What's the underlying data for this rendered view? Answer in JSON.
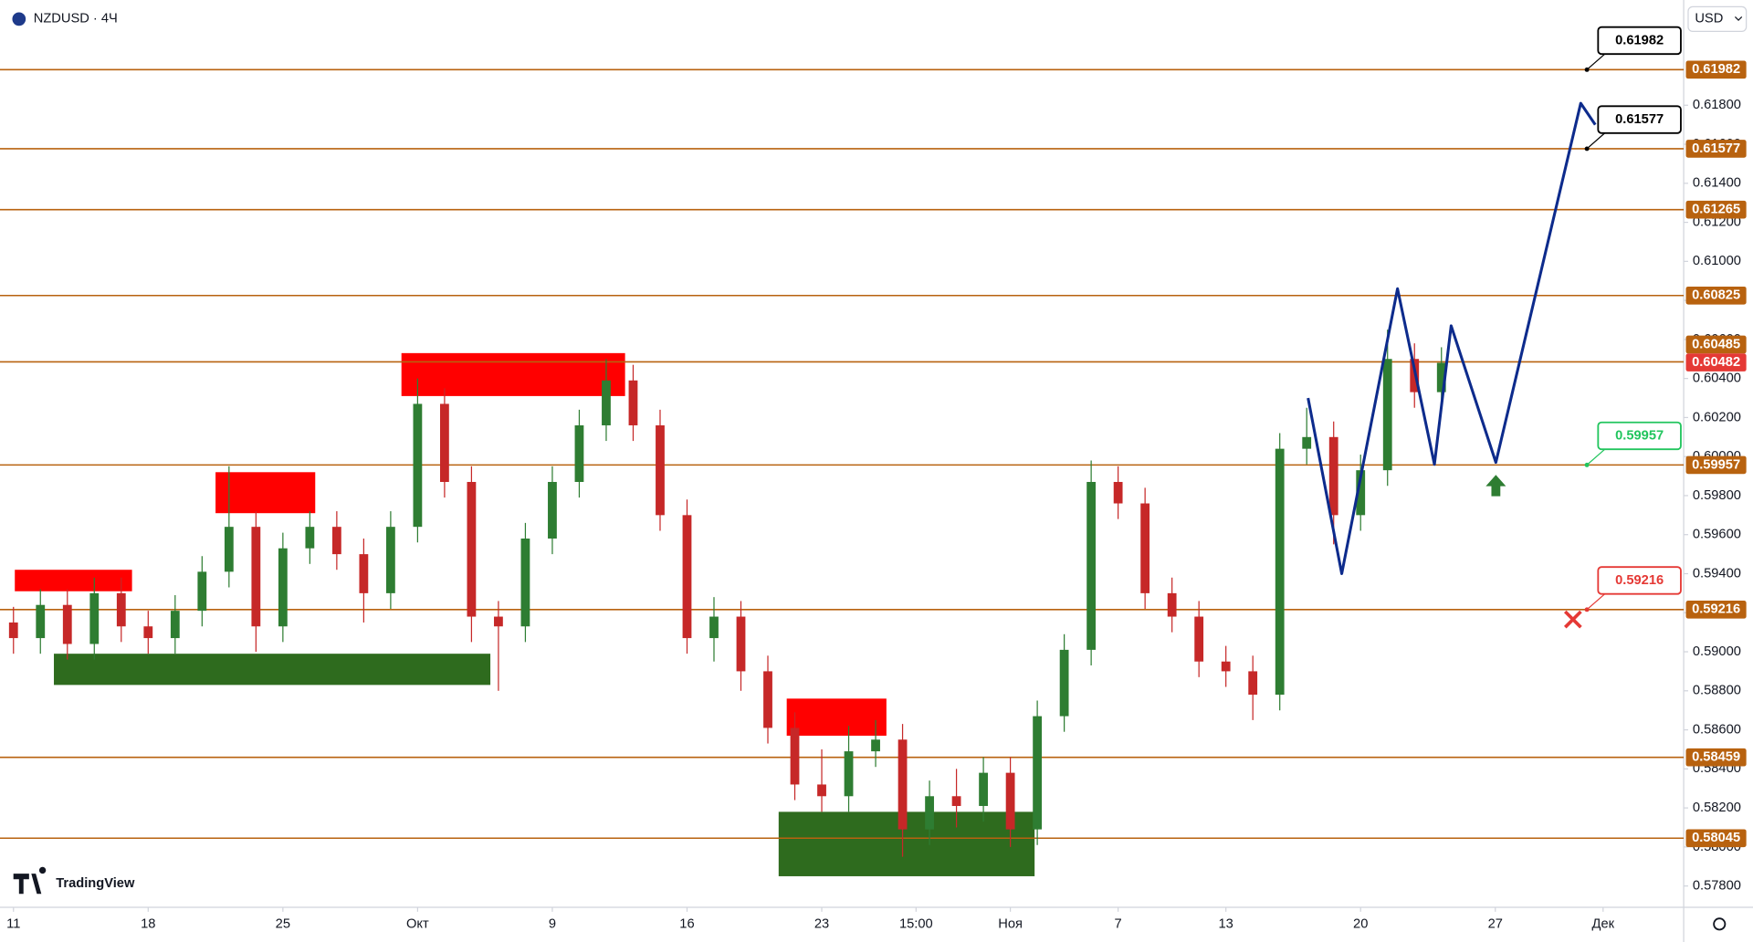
{
  "chart_data": {
    "type": "candlestick",
    "symbol": "NZDUSD · 4Ч",
    "currency": "USD",
    "brand": "TradingView",
    "up_color": "#2e7d32",
    "down_color": "#c62828",
    "x": [
      0,
      1,
      2,
      3,
      4,
      5,
      6,
      7,
      8,
      9,
      10,
      11,
      12,
      13,
      14,
      15,
      16,
      17,
      18,
      19,
      20,
      21,
      22,
      23,
      24,
      25,
      26,
      27,
      28,
      29,
      30,
      31,
      32,
      33,
      34,
      35,
      36,
      37,
      38,
      39,
      40,
      41,
      42,
      43,
      44,
      45,
      46,
      47,
      48,
      49,
      50,
      51,
      52,
      53
    ],
    "ohlc": [
      [
        0.5915,
        0.5923,
        0.5899,
        0.5907
      ],
      [
        0.5907,
        0.5932,
        0.5899,
        0.5924
      ],
      [
        0.5924,
        0.5932,
        0.5896,
        0.5904
      ],
      [
        0.5904,
        0.5938,
        0.5896,
        0.593
      ],
      [
        0.593,
        0.5938,
        0.5905,
        0.5913
      ],
      [
        0.5913,
        0.5921,
        0.5899,
        0.5907
      ],
      [
        0.5907,
        0.5929,
        0.5899,
        0.5921
      ],
      [
        0.5921,
        0.5949,
        0.5913,
        0.5941
      ],
      [
        0.5941,
        0.5995,
        0.5933,
        0.5964
      ],
      [
        0.5964,
        0.5972,
        0.59,
        0.5913
      ],
      [
        0.5913,
        0.5961,
        0.5905,
        0.5953
      ],
      [
        0.5953,
        0.5972,
        0.5945,
        0.5964
      ],
      [
        0.5964,
        0.5972,
        0.5942,
        0.595
      ],
      [
        0.595,
        0.5958,
        0.5915,
        0.593
      ],
      [
        0.593,
        0.5972,
        0.5922,
        0.5964
      ],
      [
        0.5964,
        0.604,
        0.5956,
        0.6027
      ],
      [
        0.6027,
        0.6035,
        0.5979,
        0.5987
      ],
      [
        0.5987,
        0.5995,
        0.5905,
        0.5918
      ],
      [
        0.5918,
        0.5926,
        0.588,
        0.5913
      ],
      [
        0.5913,
        0.5966,
        0.5905,
        0.5958
      ],
      [
        0.5958,
        0.5995,
        0.595,
        0.5987
      ],
      [
        0.5987,
        0.6024,
        0.5979,
        0.6016
      ],
      [
        0.6016,
        0.605,
        0.6008,
        0.6039
      ],
      [
        0.6039,
        0.6047,
        0.6008,
        0.6016
      ],
      [
        0.6016,
        0.6024,
        0.5962,
        0.597
      ],
      [
        0.597,
        0.5978,
        0.5899,
        0.5907
      ],
      [
        0.5907,
        0.5928,
        0.5895,
        0.5918
      ],
      [
        0.5918,
        0.5926,
        0.588,
        0.589
      ],
      [
        0.589,
        0.5898,
        0.5853,
        0.5861
      ],
      [
        0.5861,
        0.5869,
        0.5824,
        0.5832
      ],
      [
        0.5832,
        0.585,
        0.5818,
        0.5826
      ],
      [
        0.5826,
        0.5862,
        0.5818,
        0.5849
      ],
      [
        0.5849,
        0.5865,
        0.5841,
        0.5855
      ],
      [
        0.5855,
        0.5863,
        0.5795,
        0.5809
      ],
      [
        0.5809,
        0.5834,
        0.5801,
        0.5826
      ],
      [
        0.5826,
        0.584,
        0.581,
        0.5821
      ],
      [
        0.5821,
        0.5846,
        0.5813,
        0.5838
      ],
      [
        0.5838,
        0.5846,
        0.58,
        0.5809
      ],
      [
        0.5809,
        0.5875,
        0.5801,
        0.5867
      ],
      [
        0.5867,
        0.5909,
        0.5859,
        0.5901
      ],
      [
        0.5901,
        0.5998,
        0.5893,
        0.5987
      ],
      [
        0.5987,
        0.5995,
        0.5968,
        0.5976
      ],
      [
        0.5976,
        0.5984,
        0.5922,
        0.593
      ],
      [
        0.593,
        0.5938,
        0.591,
        0.5918
      ],
      [
        0.5918,
        0.5926,
        0.5887,
        0.5895
      ],
      [
        0.5895,
        0.5903,
        0.5882,
        0.589
      ],
      [
        0.589,
        0.5898,
        0.5865,
        0.5878
      ],
      [
        0.5878,
        0.6012,
        0.587,
        0.6004
      ],
      [
        0.6004,
        0.6025,
        0.5996,
        0.601
      ],
      [
        0.601,
        0.6018,
        0.5955,
        0.597
      ],
      [
        0.597,
        0.6001,
        0.5962,
        0.5993
      ],
      [
        0.5993,
        0.6065,
        0.5985,
        0.605
      ],
      [
        0.605,
        0.6058,
        0.6025,
        0.6033
      ],
      [
        0.6033,
        0.6056,
        0.6025,
        0.6048
      ]
    ],
    "xlim": [
      -0.5,
      61.95
    ],
    "ylim": [
      0.57691,
      0.62339
    ],
    "xticks": [
      {
        "value": 0,
        "label": "11"
      },
      {
        "value": 5,
        "label": "18"
      },
      {
        "value": 10,
        "label": "25"
      },
      {
        "value": 15,
        "label": "Окт"
      },
      {
        "value": 20,
        "label": "9"
      },
      {
        "value": 25,
        "label": "16"
      },
      {
        "value": 30,
        "label": "23"
      },
      {
        "value": 33.5,
        "label": "15:00"
      },
      {
        "value": 37,
        "label": "Ноя"
      },
      {
        "value": 41,
        "label": "7"
      },
      {
        "value": 45,
        "label": "13"
      },
      {
        "value": 50,
        "label": "20"
      },
      {
        "value": 55,
        "label": "27"
      },
      {
        "value": 59,
        "label": "Дек"
      }
    ],
    "yticks": [
      {
        "value": 0.578,
        "label": "0.57800"
      },
      {
        "value": 0.58,
        "label": "0.58000"
      },
      {
        "value": 0.582,
        "label": "0.58200"
      },
      {
        "value": 0.584,
        "label": "0.58400"
      },
      {
        "value": 0.586,
        "label": "0.58600"
      },
      {
        "value": 0.588,
        "label": "0.58800"
      },
      {
        "value": 0.59,
        "label": "0.59000"
      },
      {
        "value": 0.592,
        "label": "0.59200"
      },
      {
        "value": 0.594,
        "label": "0.59400"
      },
      {
        "value": 0.596,
        "label": "0.59600"
      },
      {
        "value": 0.598,
        "label": "0.59800"
      },
      {
        "value": 0.6,
        "label": "0.60000"
      },
      {
        "value": 0.602,
        "label": "0.60200"
      },
      {
        "value": 0.604,
        "label": "0.60400"
      },
      {
        "value": 0.606,
        "label": "0.60600"
      },
      {
        "value": 0.608,
        "label": "0.60800"
      },
      {
        "value": 0.61,
        "label": "0.61000"
      },
      {
        "value": 0.612,
        "label": "0.61200"
      },
      {
        "value": 0.614,
        "label": "0.61400"
      },
      {
        "value": 0.616,
        "label": "0.61600"
      },
      {
        "value": 0.618,
        "label": "0.61800"
      }
    ],
    "level_color": "#b8620f",
    "levels": [
      0.61982,
      0.61577,
      0.61265,
      0.60825,
      0.60485,
      0.59957,
      0.59216,
      0.58459,
      0.58045
    ],
    "last_price": 0.60482,
    "last_price_color": "#e53935",
    "zones": [
      {
        "color": "#ff0000",
        "x": [
          0.05,
          4.4
        ],
        "y": [
          0.5931,
          0.5942
        ]
      },
      {
        "color": "#ff0000",
        "x": [
          7.5,
          11.2
        ],
        "y": [
          0.5971,
          0.5992
        ]
      },
      {
        "color": "#ff0000",
        "x": [
          14.4,
          22.7
        ],
        "y": [
          0.6031,
          0.6053
        ]
      },
      {
        "color": "#ff0000",
        "x": [
          28.7,
          32.4
        ],
        "y": [
          0.5857,
          0.5876
        ]
      },
      {
        "color": "#2e6b1e",
        "x": [
          1.5,
          17.7
        ],
        "y": [
          0.5883,
          0.5899
        ]
      },
      {
        "color": "#2e6b1e",
        "x": [
          28.4,
          37.9
        ],
        "y": [
          0.5785,
          0.5818
        ]
      }
    ],
    "projection": {
      "color": "#0d2b8c",
      "x": [
        48.05,
        49.3,
        51.37,
        52.74,
        53.36,
        55.02,
        58.17,
        58.71
      ],
      "y": [
        0.603,
        0.594,
        0.6086,
        0.5996,
        0.6067,
        0.5997,
        0.6181,
        0.617
      ]
    },
    "callouts": [
      {
        "x": 58.4,
        "value": 0.61982,
        "color": "#000000"
      },
      {
        "x": 58.4,
        "value": 0.61577,
        "color": "#000000"
      },
      {
        "x": 58.4,
        "value": 0.59957,
        "color": "#22c55e"
      },
      {
        "x": 58.4,
        "value": 0.59216,
        "color": "#e53935"
      }
    ]
  }
}
